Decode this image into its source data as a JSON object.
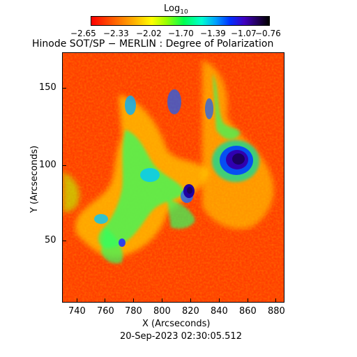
{
  "colorbar": {
    "label_main": "Log",
    "label_sub": "10",
    "ticks": [
      "−2.65",
      "−2.33",
      "−2.02",
      "−1.70",
      "−1.39",
      "−1.07",
      "−0.76"
    ],
    "scale": "log10",
    "range": [
      -2.65,
      -0.76
    ]
  },
  "title": "Hinode SOT/SP − MERLIN : Degree of Polarization",
  "axes": {
    "xlabel": "X (Arcseconds)",
    "ylabel": "Y (Arcseconds)",
    "xticks": [
      "740",
      "760",
      "780",
      "800",
      "820",
      "840",
      "860",
      "880"
    ],
    "yticks": [
      "50",
      "100",
      "150"
    ]
  },
  "timestamp": "20-Sep-2023 02:30:05.512",
  "colors": {
    "background_map": "#ff3000",
    "strong_signal": "#1a0060"
  }
}
